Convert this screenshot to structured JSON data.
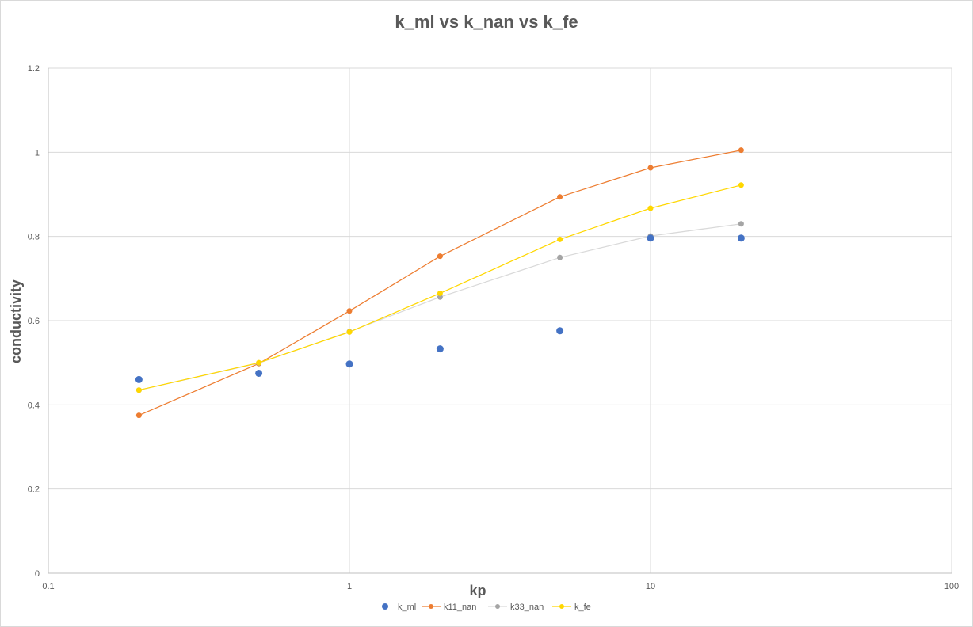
{
  "chart_data": {
    "type": "scatter",
    "title": "k_ml vs k_nan vs k_fe",
    "xlabel": "kp",
    "ylabel": "conductivity",
    "xscale": "log",
    "xlim": [
      0.1,
      100
    ],
    "ylim": [
      0,
      1.2
    ],
    "x_ticks": [
      "0.1",
      "1",
      "10",
      "100"
    ],
    "y_ticks": [
      "0",
      "0.2",
      "0.4",
      "0.6",
      "0.8",
      "1",
      "1.2"
    ],
    "grid": true,
    "legend_position": "bottom",
    "series": [
      {
        "name": "k_ml",
        "color": "#4472C4",
        "style": "markers",
        "points": [
          [
            0.2,
            0.46
          ],
          [
            0.5,
            0.475
          ],
          [
            1,
            0.497
          ],
          [
            2,
            0.533
          ],
          [
            5,
            0.576
          ],
          [
            10,
            0.796
          ],
          [
            20,
            0.796
          ]
        ]
      },
      {
        "name": "k11_nan",
        "color": "#ED7D31",
        "style": "line-markers",
        "points": [
          [
            0.2,
            0.375
          ],
          [
            0.5,
            0.498
          ],
          [
            1,
            0.623
          ],
          [
            2,
            0.753
          ],
          [
            5,
            0.894
          ],
          [
            10,
            0.963
          ],
          [
            20,
            1.005
          ]
        ]
      },
      {
        "name": "k33_nan",
        "color": "#A5A5A5",
        "style": "line-markers",
        "points": [
          [
            0.2,
            0.435
          ],
          [
            0.5,
            0.499
          ],
          [
            1,
            0.574
          ],
          [
            2,
            0.656
          ],
          [
            5,
            0.75
          ],
          [
            10,
            0.801
          ],
          [
            20,
            0.83
          ]
        ]
      },
      {
        "name": "k_fe",
        "color": "#FFD700",
        "style": "line-markers",
        "points": [
          [
            0.2,
            0.435
          ],
          [
            0.5,
            0.5
          ],
          [
            1,
            0.573
          ],
          [
            2,
            0.665
          ],
          [
            5,
            0.793
          ],
          [
            10,
            0.867
          ],
          [
            20,
            0.922
          ]
        ]
      }
    ]
  }
}
